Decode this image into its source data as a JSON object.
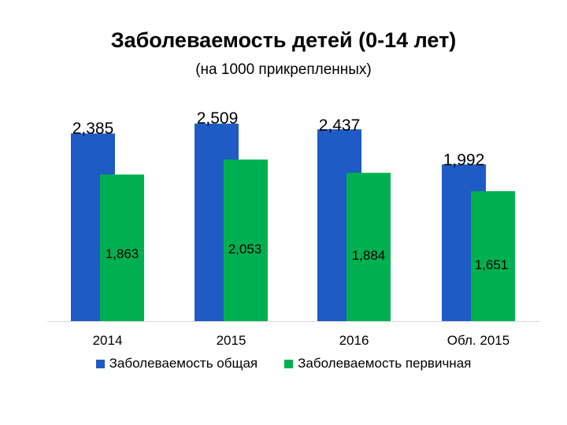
{
  "chart_data": {
    "type": "bar",
    "title": "Заболеваемость детей (0-14 лет)",
    "subtitle": "(на 1000 прикрепленных)",
    "categories": [
      "2014",
      "2015",
      "2016",
      "Обл. 2015"
    ],
    "series": [
      {
        "name": "Заболеваемость общая",
        "color": "#1f5bc4",
        "values": [
          2.385,
          2.509,
          2.437,
          1.992
        ],
        "labels": [
          "2,385",
          "2,509",
          "2,437",
          "1,992"
        ]
      },
      {
        "name": "Заболеваемость первичная",
        "color": "#00b050",
        "values": [
          1.863,
          2.053,
          1.884,
          1.651
        ],
        "labels": [
          "1,863",
          "2,053",
          "1,884",
          "1,651"
        ]
      }
    ],
    "ylim": [
      0,
      2.5
    ],
    "grid": false,
    "legend_position": "bottom"
  }
}
